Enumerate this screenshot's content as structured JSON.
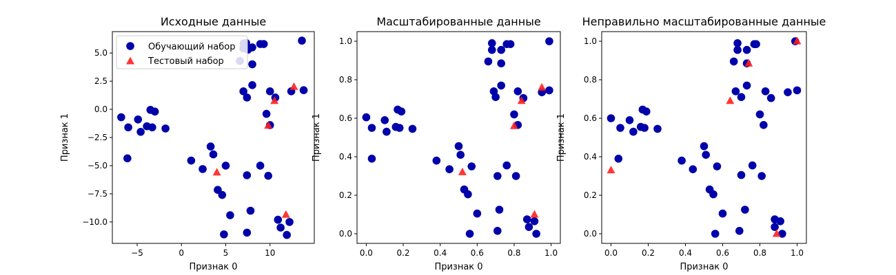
{
  "colors": {
    "train": "#0000aa",
    "test": "#ff2020"
  },
  "legend": {
    "placement": "upper-left of first panel",
    "train_label": "Обучающий набор",
    "test_label": "Тестовый набор"
  },
  "chart_data": [
    {
      "type": "scatter",
      "title": "Исходные данные",
      "xlabel": "Признак 0",
      "ylabel": "Признак 1",
      "xlim": [
        -7.8,
        15.0
      ],
      "ylim": [
        -11.9,
        6.9
      ],
      "xticks": [
        -5,
        0,
        5,
        10
      ],
      "xtick_labels": [
        "−5",
        "0",
        "5",
        "10"
      ],
      "yticks": [
        -10,
        -7.5,
        -5,
        -2.5,
        0,
        2.5,
        5
      ],
      "ytick_labels": [
        "−10.0",
        "−7.5",
        "−5.0",
        "−2.5",
        "0.0",
        "2.5",
        "5.0"
      ],
      "grid": false,
      "legend": true,
      "series": [
        {
          "name": "Обучающий набор",
          "marker": "circle",
          "points": [
            [
              -6.8,
              -0.7
            ],
            [
              -6.0,
              -1.6
            ],
            [
              -6.1,
              -4.35
            ],
            [
              -4.9,
              -0.9
            ],
            [
              -4.6,
              -2.0
            ],
            [
              -3.9,
              -1.5
            ],
            [
              -3.5,
              -0.05
            ],
            [
              -3.3,
              -1.6
            ],
            [
              -3.0,
              -0.2
            ],
            [
              -1.8,
              -1.7
            ],
            [
              1.1,
              -4.55
            ],
            [
              2.4,
              -5.3
            ],
            [
              3.3,
              -3.3
            ],
            [
              3.6,
              -4.0
            ],
            [
              4.1,
              -7.15
            ],
            [
              4.6,
              -7.6
            ],
            [
              4.8,
              -11.1
            ],
            [
              5.0,
              -5.0
            ],
            [
              5.5,
              -9.4
            ],
            [
              6.6,
              4.3
            ],
            [
              7.0,
              5.85
            ],
            [
              7.0,
              5.4
            ],
            [
              7.3,
              5.9
            ],
            [
              7.5,
              5.3
            ],
            [
              8.0,
              5.5
            ],
            [
              8.0,
              4.0
            ],
            [
              7.0,
              1.6
            ],
            [
              7.4,
              1.05
            ],
            [
              8.0,
              2.15
            ],
            [
              7.4,
              -5.85
            ],
            [
              7.4,
              -10.95
            ],
            [
              7.8,
              -9.0
            ],
            [
              8.9,
              -5.0
            ],
            [
              8.9,
              5.8
            ],
            [
              9.3,
              5.8
            ],
            [
              9.6,
              -0.4
            ],
            [
              9.8,
              -5.9
            ],
            [
              10.0,
              1.6
            ],
            [
              10.0,
              -1.4
            ],
            [
              10.6,
              1.05
            ],
            [
              10.9,
              -9.8
            ],
            [
              11.2,
              -10.5
            ],
            [
              11.9,
              -11.15
            ],
            [
              12.2,
              -10.0
            ],
            [
              12.4,
              1.6
            ],
            [
              13.6,
              6.1
            ],
            [
              13.8,
              1.7
            ]
          ]
        },
        {
          "name": "Тестовый набор",
          "marker": "triangle",
          "points": [
            [
              4.0,
              -5.6
            ],
            [
              9.8,
              -1.45
            ],
            [
              10.5,
              0.75
            ],
            [
              11.8,
              -9.35
            ],
            [
              12.7,
              2.0
            ]
          ]
        }
      ]
    },
    {
      "type": "scatter",
      "title": "Масштабированные данные",
      "xlabel": "Признак 0",
      "ylabel": "Признак 1",
      "xlim": [
        -0.05,
        1.05
      ],
      "ylim": [
        -0.05,
        1.05
      ],
      "xticks": [
        0,
        0.2,
        0.4,
        0.6,
        0.8,
        1.0
      ],
      "xtick_labels": [
        "0.0",
        "0.2",
        "0.4",
        "0.6",
        "0.8",
        "1.0"
      ],
      "yticks": [
        0,
        0.2,
        0.4,
        0.6,
        0.8,
        1.0
      ],
      "ytick_labels": [
        "0.0",
        "0.2",
        "0.4",
        "0.6",
        "0.8",
        "1.0"
      ],
      "grid": false,
      "legend": false,
      "series": [
        {
          "name": "Обучающий набор",
          "marker": "circle",
          "points": [
            [
              0.0,
              0.605
            ],
            [
              0.03,
              0.39
            ],
            [
              0.03,
              0.55
            ],
            [
              0.1,
              0.59
            ],
            [
              0.11,
              0.53
            ],
            [
              0.16,
              0.555
            ],
            [
              0.17,
              0.645
            ],
            [
              0.18,
              0.55
            ],
            [
              0.19,
              0.635
            ],
            [
              0.25,
              0.545
            ],
            [
              0.38,
              0.38
            ],
            [
              0.45,
              0.335
            ],
            [
              0.5,
              0.455
            ],
            [
              0.51,
              0.41
            ],
            [
              0.53,
              0.23
            ],
            [
              0.55,
              0.205
            ],
            [
              0.56,
              0.0
            ],
            [
              0.57,
              0.35
            ],
            [
              0.6,
              0.105
            ],
            [
              0.66,
              0.895
            ],
            [
              0.68,
              0.99
            ],
            [
              0.68,
              0.955
            ],
            [
              0.69,
              0.74
            ],
            [
              0.7,
              0.71
            ],
            [
              0.71,
              0.3
            ],
            [
              0.71,
              0.015
            ],
            [
              0.72,
              0.125
            ],
            [
              0.73,
              0.955
            ],
            [
              0.73,
              0.885
            ],
            [
              0.73,
              0.77
            ],
            [
              0.76,
              0.985
            ],
            [
              0.76,
              0.355
            ],
            [
              0.78,
              0.985
            ],
            [
              0.8,
              0.62
            ],
            [
              0.81,
              0.3
            ],
            [
              0.82,
              0.565
            ],
            [
              0.82,
              0.74
            ],
            [
              0.85,
              0.705
            ],
            [
              0.87,
              0.075
            ],
            [
              0.88,
              0.035
            ],
            [
              0.91,
              0.065
            ],
            [
              0.92,
              0.0
            ],
            [
              0.95,
              0.735
            ],
            [
              0.99,
              0.745
            ],
            [
              0.99,
              1.0
            ]
          ]
        },
        {
          "name": "Тестовый набор",
          "marker": "triangle",
          "points": [
            [
              0.52,
              0.32
            ],
            [
              0.8,
              0.56
            ],
            [
              0.84,
              0.69
            ],
            [
              0.91,
              0.1
            ],
            [
              0.95,
              0.76
            ]
          ]
        }
      ]
    },
    {
      "type": "scatter",
      "title": "Неправильно масштабированные данные",
      "xlabel": "Признак 0",
      "ylabel": "Признак 1",
      "xlim": [
        -0.05,
        1.05
      ],
      "ylim": [
        -0.05,
        1.05
      ],
      "xticks": [
        0,
        0.2,
        0.4,
        0.6,
        0.8,
        1.0
      ],
      "xtick_labels": [
        "0.0",
        "0.2",
        "0.4",
        "0.6",
        "0.8",
        "1.0"
      ],
      "yticks": [
        0,
        0.2,
        0.4,
        0.6,
        0.8,
        1.0
      ],
      "ytick_labels": [
        "0.0",
        "0.2",
        "0.4",
        "0.6",
        "0.8",
        "1.0"
      ],
      "grid": false,
      "legend": false,
      "series": [
        {
          "name": "Обучающий набор",
          "marker": "circle",
          "points": [
            [
              0.0,
              0.6
            ],
            [
              0.04,
              0.39
            ],
            [
              0.05,
              0.55
            ],
            [
              0.1,
              0.59
            ],
            [
              0.12,
              0.53
            ],
            [
              0.16,
              0.555
            ],
            [
              0.17,
              0.645
            ],
            [
              0.18,
              0.55
            ],
            [
              0.19,
              0.635
            ],
            [
              0.25,
              0.545
            ],
            [
              0.38,
              0.38
            ],
            [
              0.44,
              0.335
            ],
            [
              0.5,
              0.455
            ],
            [
              0.51,
              0.41
            ],
            [
              0.53,
              0.23
            ],
            [
              0.55,
              0.205
            ],
            [
              0.56,
              0.0
            ],
            [
              0.57,
              0.35
            ],
            [
              0.6,
              0.105
            ],
            [
              0.66,
              0.895
            ],
            [
              0.68,
              0.99
            ],
            [
              0.68,
              0.955
            ],
            [
              0.67,
              0.74
            ],
            [
              0.7,
              0.71
            ],
            [
              0.7,
              0.305
            ],
            [
              0.69,
              0.015
            ],
            [
              0.72,
              0.125
            ],
            [
              0.73,
              0.955
            ],
            [
              0.73,
              0.885
            ],
            [
              0.73,
              0.77
            ],
            [
              0.77,
              0.985
            ],
            [
              0.76,
              0.355
            ],
            [
              0.78,
              0.985
            ],
            [
              0.8,
              0.62
            ],
            [
              0.81,
              0.3
            ],
            [
              0.82,
              0.565
            ],
            [
              0.83,
              0.74
            ],
            [
              0.86,
              0.705
            ],
            [
              0.88,
              0.075
            ],
            [
              0.88,
              0.035
            ],
            [
              0.91,
              0.065
            ],
            [
              0.92,
              0.0
            ],
            [
              0.95,
              0.735
            ],
            [
              1.0,
              0.745
            ],
            [
              0.99,
              1.0
            ]
          ]
        },
        {
          "name": "Тестовый набор",
          "marker": "triangle",
          "points": [
            [
              0.0,
              0.33
            ],
            [
              0.64,
              0.69
            ],
            [
              0.74,
              0.885
            ],
            [
              0.89,
              0.0
            ],
            [
              1.0,
              1.0
            ]
          ]
        }
      ]
    }
  ]
}
